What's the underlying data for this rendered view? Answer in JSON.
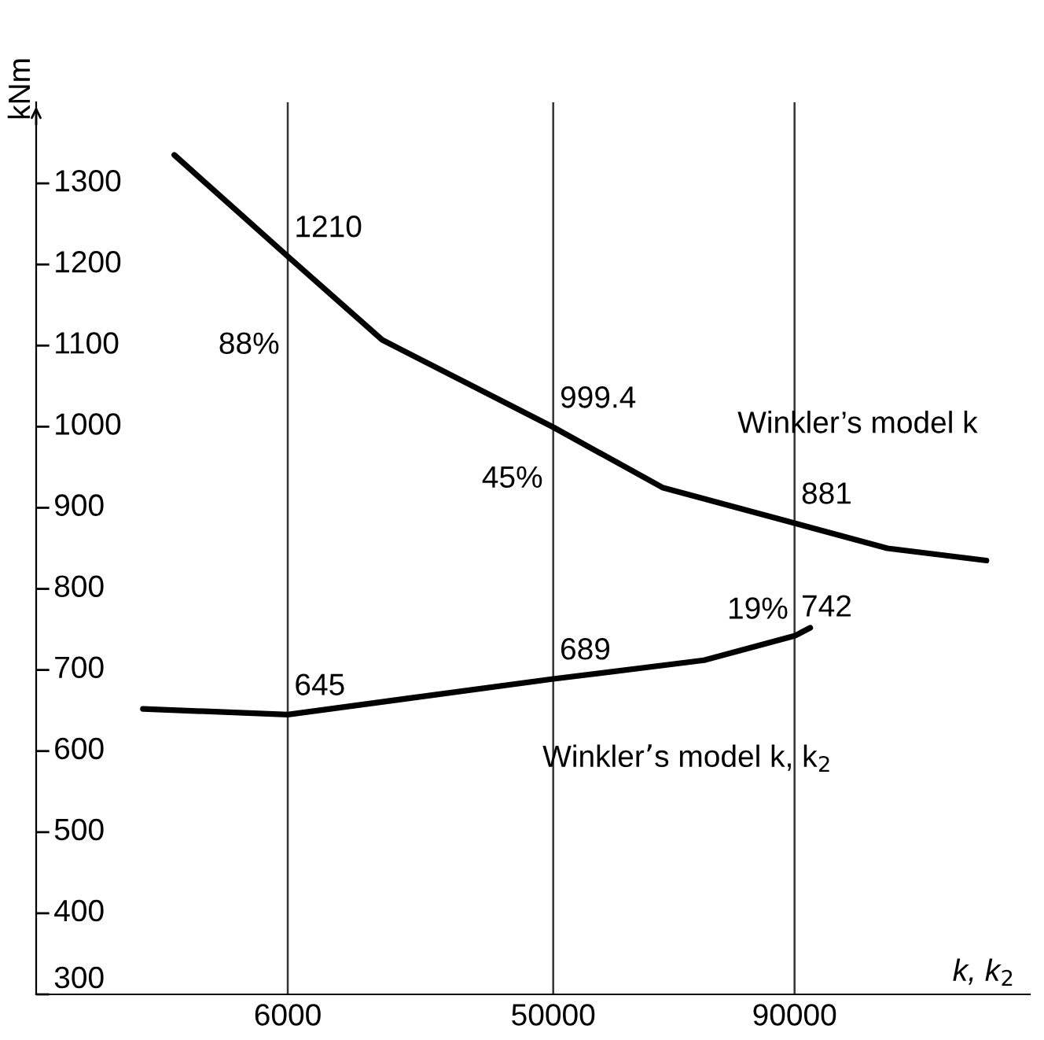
{
  "chart_data": {
    "type": "line",
    "xlabel": "k, k$_{2}$",
    "ylabel": "kNm",
    "xlim": [
      -35700,
      129000
    ],
    "xticks": [
      6000,
      50000,
      90000
    ],
    "ylim": [
      300,
      1400
    ],
    "yticks": [
      300,
      400,
      500,
      600,
      700,
      800,
      900,
      1000,
      1100,
      1200,
      1300
    ],
    "grid": "x",
    "legend": false,
    "marker": "none",
    "line_style": "solid",
    "series": [
      {
        "name": "Winkler’s model k",
        "color": "#000000",
        "x": [
          -12800,
          6000,
          21650,
          50000,
          68100,
          90000,
          105400,
          121800
        ],
        "values": [
          1335,
          1210,
          1107,
          999.4,
          925,
          881,
          850,
          835
        ]
      },
      {
        "name": "Winkler’s model k, k$_{2}$",
        "color": "#000000",
        "x": [
          -18000,
          6000,
          50000,
          75000,
          90000,
          92600
        ],
        "values": [
          652,
          645,
          689,
          712,
          742,
          752
        ]
      }
    ],
    "annotations": [
      {
        "text": "1210",
        "x": 6000,
        "y": 1210
      },
      {
        "text": "999.4",
        "x": 50000,
        "y": 999.4
      },
      {
        "text": "881",
        "x": 90000,
        "y": 881
      },
      {
        "text": "645",
        "x": 6000,
        "y": 645
      },
      {
        "text": "689",
        "x": 50000,
        "y": 689
      },
      {
        "text": "742",
        "x": 90000,
        "y": 742
      },
      "88%",
      "45%",
      "19%"
    ]
  }
}
